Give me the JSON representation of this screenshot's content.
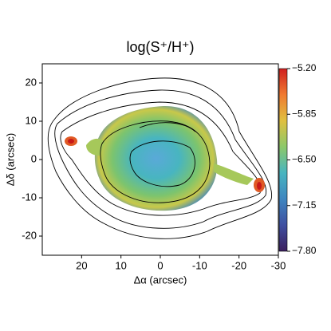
{
  "chart_data": {
    "type": "heatmap",
    "title": "log(S⁺/H⁺)",
    "x_label": "Δα (arcsec)",
    "y_label": "Δδ (arcsec)",
    "xlim": [
      30,
      -30
    ],
    "ylim": [
      -25,
      25
    ],
    "xticks": [
      20,
      10,
      0,
      -10,
      -20,
      -30
    ],
    "yticks": [
      -20,
      -10,
      0,
      10,
      20
    ],
    "colorbar": {
      "lim": [
        -7.8,
        -5.2
      ],
      "ticks": [
        {
          "value": -5.2,
          "label": "−5.20"
        },
        {
          "value": -5.85,
          "label": "−5.85"
        },
        {
          "value": -6.5,
          "label": "−6.50"
        },
        {
          "value": -7.15,
          "label": "−7.15"
        },
        {
          "value": -7.8,
          "label": "−7.80"
        }
      ],
      "colors": [
        "#3b1f5e",
        "#3f4fa0",
        "#3f86c0",
        "#48b5c0",
        "#8cc86a",
        "#e0c040",
        "#f07a30",
        "#d02020"
      ]
    }
  }
}
